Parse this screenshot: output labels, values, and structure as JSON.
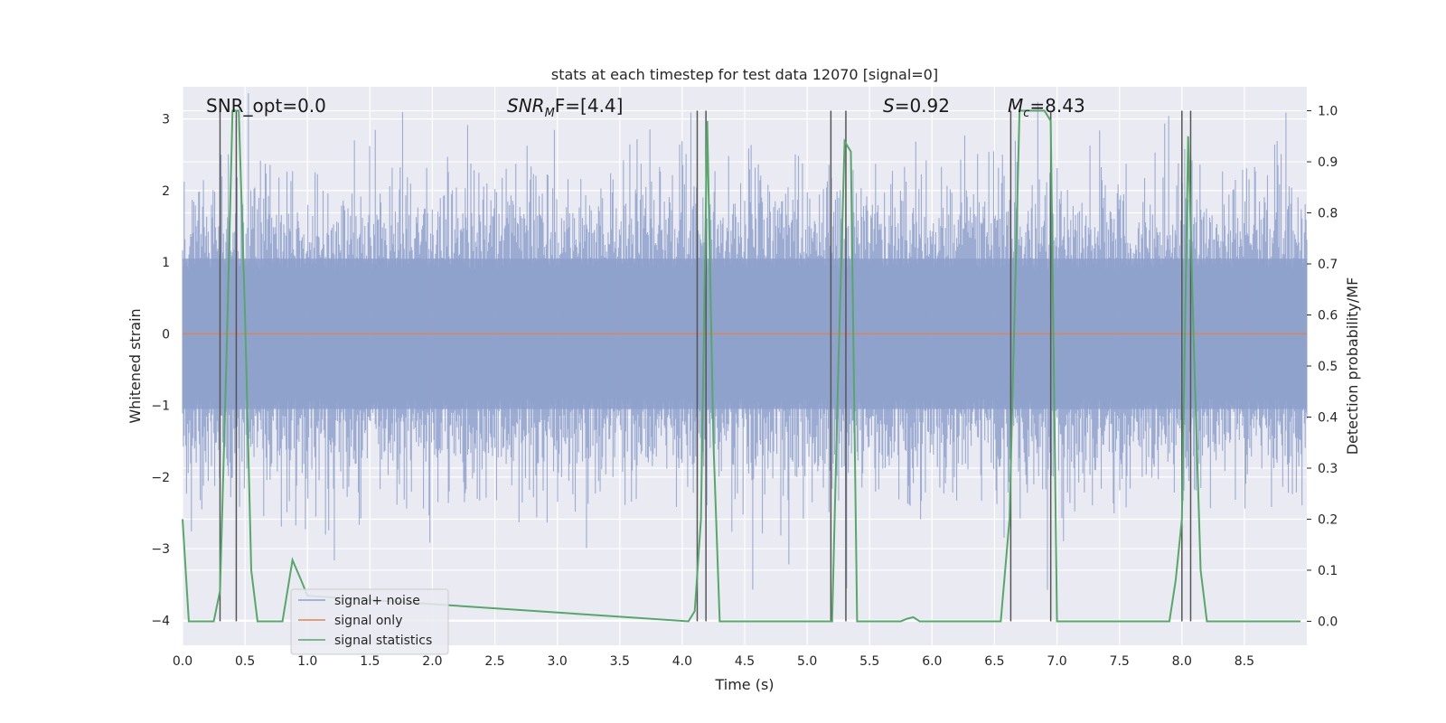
{
  "chart_data": {
    "type": "line",
    "title": "stats at each timestep for test data 12070 [signal=0]",
    "xlabel": "Time (s)",
    "ylabel": "Whitened strain",
    "ylabel_right": "Detection probability/MF",
    "xlim": [
      0.0,
      9.0
    ],
    "ylim": [
      -4.35,
      3.45
    ],
    "ylim_right": [
      -0.047,
      1.047
    ],
    "xticks": [
      "0.0",
      "0.5",
      "1.0",
      "1.5",
      "2.0",
      "2.5",
      "3.0",
      "3.5",
      "4.0",
      "4.5",
      "5.0",
      "5.5",
      "6.0",
      "6.5",
      "7.0",
      "7.5",
      "8.0",
      "8.5"
    ],
    "yticks": [
      "3",
      "2",
      "1",
      "0",
      "−1",
      "−2",
      "−3",
      "−4"
    ],
    "yticks_right": [
      "1.0",
      "0.9",
      "0.8",
      "0.7",
      "0.6",
      "0.5",
      "0.4",
      "0.3",
      "0.2",
      "0.1",
      "0.0"
    ],
    "annotations": {
      "snr_opt": "SNR_opt=0.0",
      "snr_mf_main": "SNR",
      "snr_mf_sub": "M",
      "snr_mf_rest": "F=[4.4]",
      "s_main": "S",
      "s_rest": "=0.92",
      "mc_main": "M",
      "mc_sub": "c",
      "mc_rest": "=8.43"
    },
    "legend": {
      "location": "lower left",
      "entries": [
        "signal+ noise",
        "signal only",
        "signal statistics"
      ]
    },
    "series": [
      {
        "name": "signal+ noise",
        "color": "#8da0cb",
        "kind": "noise",
        "mean": 0.0,
        "amplitude": 3.4
      },
      {
        "name": "signal only",
        "color": "#dd8452",
        "kind": "constant",
        "value": 0.0
      },
      {
        "name": "signal statistics",
        "color": "#55a868",
        "axis": "right",
        "x": [
          0.0,
          0.05,
          0.25,
          0.3,
          0.35,
          0.4,
          0.45,
          0.5,
          0.55,
          0.6,
          0.8,
          0.88,
          0.95,
          1.0,
          4.05,
          4.1,
          4.15,
          4.2,
          4.25,
          4.3,
          5.15,
          5.2,
          5.25,
          5.3,
          5.35,
          5.4,
          5.75,
          5.8,
          5.85,
          5.9,
          6.55,
          6.62,
          6.7,
          6.8,
          6.9,
          6.95,
          7.0,
          7.05,
          7.7,
          7.9,
          7.95,
          8.0,
          8.05,
          8.1,
          8.15,
          8.2,
          8.25,
          8.95
        ],
        "y": [
          0.2,
          0.0,
          0.0,
          0.06,
          0.5,
          1.0,
          1.0,
          0.6,
          0.1,
          0.0,
          0.0,
          0.12,
          0.08,
          0.05,
          0.0,
          0.02,
          0.2,
          0.98,
          0.35,
          0.0,
          0.0,
          0.0,
          0.5,
          0.94,
          0.92,
          0.0,
          0.0,
          0.005,
          0.008,
          0.0,
          0.0,
          0.2,
          1.0,
          1.0,
          1.0,
          0.98,
          0.0,
          0.0,
          0.0,
          0.0,
          0.08,
          0.2,
          0.95,
          0.5,
          0.1,
          0.0,
          0.0,
          0.0
        ]
      }
    ],
    "vlines": [
      0.3,
      0.43,
      4.12,
      4.19,
      5.19,
      5.31,
      6.63,
      6.95,
      8.0,
      8.07
    ]
  }
}
